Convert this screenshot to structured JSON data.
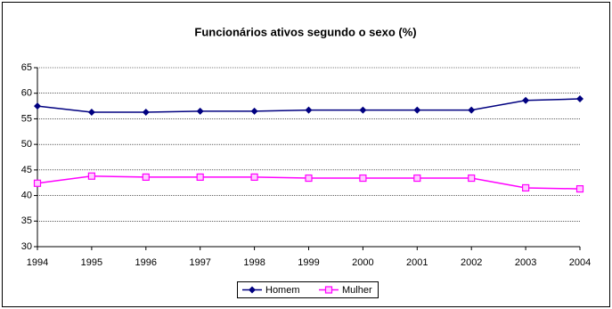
{
  "chart_data": {
    "type": "line",
    "title": "Funcionários ativos segundo o sexo (%)",
    "x": [
      1994,
      1995,
      1996,
      1997,
      1998,
      1999,
      2000,
      2001,
      2002,
      2003,
      2004
    ],
    "xlim": [
      1994,
      2004
    ],
    "xticks": [
      1994,
      1995,
      1996,
      1997,
      1998,
      1999,
      2000,
      2001,
      2002,
      2003,
      2004
    ],
    "ylim": [
      30,
      65
    ],
    "yticks": [
      30,
      35,
      40,
      45,
      50,
      55,
      60,
      65
    ],
    "grid": true,
    "legend": "bottom",
    "series": [
      {
        "name": "Homem",
        "color": "#000080",
        "marker": "diamond",
        "values": [
          57.5,
          56.3,
          56.3,
          56.5,
          56.5,
          56.7,
          56.7,
          56.7,
          56.7,
          58.6,
          58.9
        ]
      },
      {
        "name": "Mulher",
        "color": "#ff00ff",
        "marker": "square",
        "values": [
          42.4,
          43.8,
          43.6,
          43.6,
          43.6,
          43.4,
          43.4,
          43.4,
          43.4,
          41.5,
          41.3
        ]
      }
    ]
  }
}
